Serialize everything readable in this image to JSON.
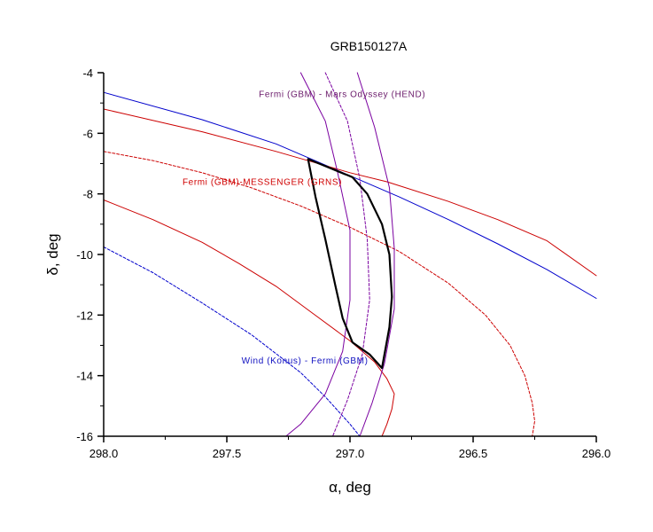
{
  "chart_data": {
    "type": "line",
    "title": "GRB150127A",
    "xlabel": "α, deg",
    "ylabel": "δ, deg",
    "xlim": [
      298.0,
      296.0
    ],
    "ylim": [
      -16,
      -4
    ],
    "x_reversed": true,
    "x_ticks": [
      298.0,
      297.5,
      297.0,
      296.5,
      296.0
    ],
    "x_tick_labels": [
      "298.0",
      "297.5",
      "297.0",
      "296.5",
      "296.0"
    ],
    "y_ticks": [
      -16,
      -14,
      -12,
      -10,
      -8,
      -6,
      -4
    ],
    "y_tick_labels": [
      "-16",
      "-14",
      "-12",
      "-10",
      "-8",
      "-6",
      "-4"
    ],
    "grid": false,
    "legend": "none",
    "annotations": [
      {
        "text": "Fermi (GBM) - Mars Odyssey (HEND)",
        "color": "#6a1a6a",
        "x": 297.37,
        "y": -4.8
      },
      {
        "text": "Fermi (GBM)-MESSENGER (GRNS)",
        "color": "#d00000",
        "x": 297.68,
        "y": -7.7
      },
      {
        "text": "Wind (Konus) - Fermi (GBM)",
        "color": "#1010c0",
        "x": 297.44,
        "y": -13.6
      }
    ],
    "series": [
      {
        "color": "#0000cc",
        "style": "solid",
        "width": 1,
        "x": [
          298.0,
          297.6,
          297.3,
          297.1,
          297.0,
          296.8,
          296.6,
          296.4,
          296.2,
          296.0
        ],
        "y": [
          -4.65,
          -5.55,
          -6.35,
          -7.05,
          -7.4,
          -8.1,
          -8.85,
          -9.65,
          -10.5,
          -11.45
        ]
      },
      {
        "color": "#cc0000",
        "style": "solid",
        "width": 1,
        "x": [
          298.0,
          297.6,
          297.3,
          297.15,
          297.0,
          296.85,
          296.6,
          296.4,
          296.2,
          296.0
        ],
        "y": [
          -5.2,
          -5.95,
          -6.6,
          -6.95,
          -7.3,
          -7.6,
          -8.25,
          -8.85,
          -9.55,
          -10.7
        ]
      },
      {
        "color": "#cc0000",
        "style": "dashed",
        "width": 1,
        "x": [
          298.0,
          297.8,
          297.6,
          297.4,
          297.2,
          297.0,
          296.8,
          296.6,
          296.45,
          296.35,
          296.29,
          296.26,
          296.25,
          296.26
        ],
        "y": [
          -6.6,
          -6.9,
          -7.3,
          -7.8,
          -8.4,
          -9.1,
          -9.9,
          -10.95,
          -12.0,
          -13.0,
          -14.0,
          -14.9,
          -15.5,
          -16.0
        ]
      },
      {
        "color": "#cc0000",
        "style": "solid",
        "width": 1,
        "x": [
          298.0,
          297.8,
          297.6,
          297.45,
          297.3,
          297.15,
          297.0,
          296.9,
          296.85,
          296.82,
          296.83,
          296.85,
          296.87
        ],
        "y": [
          -8.2,
          -8.85,
          -9.6,
          -10.3,
          -11.05,
          -11.95,
          -12.85,
          -13.55,
          -14.1,
          -14.6,
          -15.1,
          -15.6,
          -16.0
        ]
      },
      {
        "color": "#0000cc",
        "style": "dashed",
        "width": 1,
        "x": [
          298.0,
          297.8,
          297.6,
          297.4,
          297.2,
          297.1,
          297.0,
          296.96
        ],
        "y": [
          -9.75,
          -10.6,
          -11.6,
          -12.65,
          -13.9,
          -14.7,
          -15.6,
          -16.0
        ]
      },
      {
        "color": "#7a00a0",
        "style": "solid",
        "width": 1,
        "x": [
          297.2,
          297.1,
          297.05,
          297.0,
          297.0,
          297.03,
          297.1,
          297.2,
          297.26
        ],
        "y": [
          -4.0,
          -5.6,
          -7.3,
          -9.2,
          -11.5,
          -13.2,
          -14.6,
          -15.6,
          -16.0
        ]
      },
      {
        "color": "#7a00a0",
        "style": "dashed",
        "width": 1,
        "x": [
          297.1,
          297.01,
          296.96,
          296.93,
          296.92,
          296.95,
          297.01,
          297.07
        ],
        "y": [
          -4.0,
          -5.6,
          -7.5,
          -9.5,
          -11.5,
          -13.3,
          -14.8,
          -16.0
        ]
      },
      {
        "color": "#7a00a0",
        "style": "solid",
        "width": 1,
        "x": [
          296.97,
          296.9,
          296.84,
          296.82,
          296.82,
          296.86,
          296.91,
          296.96
        ],
        "y": [
          -4.0,
          -5.8,
          -7.8,
          -9.8,
          -11.8,
          -13.6,
          -14.9,
          -16.0
        ]
      },
      {
        "color": "#000000",
        "style": "solid",
        "width": 2.2,
        "x": [
          297.17,
          297.08,
          297.02,
          297.01,
          296.99,
          296.93,
          296.87,
          296.84,
          296.83,
          296.84,
          296.87,
          296.92,
          296.99,
          297.03,
          297.06,
          297.1,
          297.14,
          297.17
        ],
        "y": [
          -6.85,
          -7.15,
          -7.35,
          -7.38,
          -7.45,
          -8.0,
          -9.0,
          -10.0,
          -11.4,
          -12.4,
          -13.75,
          -13.3,
          -12.9,
          -12.1,
          -11.0,
          -9.5,
          -8.1,
          -6.85
        ]
      }
    ]
  }
}
